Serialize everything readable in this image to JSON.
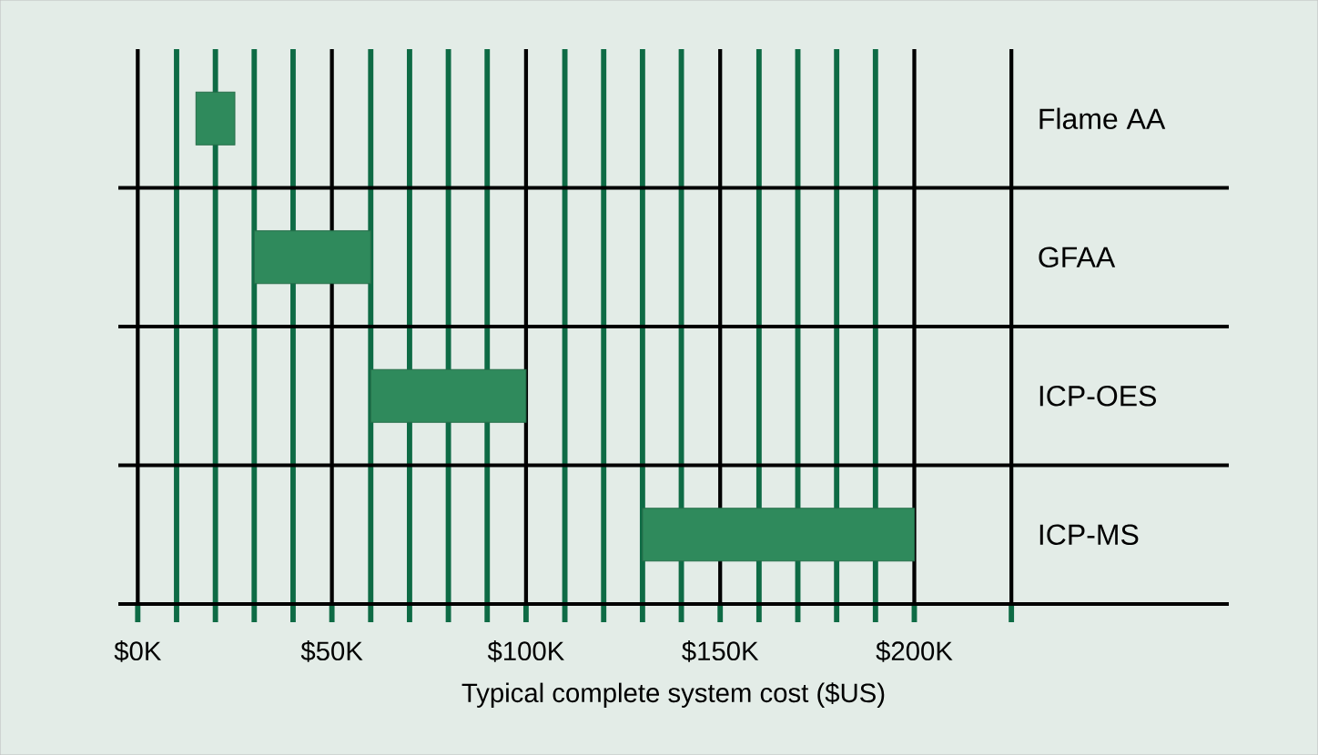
{
  "chart_data": {
    "type": "bar",
    "orientation": "horizontal",
    "xlabel": "Typical complete system cost ($US)",
    "categories": [
      "Flame AA",
      "GFAA",
      "ICP-OES",
      "ICP-MS"
    ],
    "base": [
      15,
      30,
      60,
      130
    ],
    "values": [
      10,
      30,
      40,
      70
    ],
    "color": "#2f8a5c",
    "xlim": [
      -5,
      281
    ],
    "xticks": [
      {
        "value": 0,
        "label": "$0K"
      },
      {
        "value": 10,
        "label": null
      },
      {
        "value": 20,
        "label": null
      },
      {
        "value": 30,
        "label": null
      },
      {
        "value": 40,
        "label": null
      },
      {
        "value": 50,
        "label": "$50K"
      },
      {
        "value": 60,
        "label": null
      },
      {
        "value": 70,
        "label": null
      },
      {
        "value": 80,
        "label": null
      },
      {
        "value": 90,
        "label": null
      },
      {
        "value": 100,
        "label": "$100K"
      },
      {
        "value": 110,
        "label": null
      },
      {
        "value": 120,
        "label": null
      },
      {
        "value": 130,
        "label": null
      },
      {
        "value": 140,
        "label": null
      },
      {
        "value": 150,
        "label": "$150K"
      },
      {
        "value": 160,
        "label": null
      },
      {
        "value": 170,
        "label": null
      },
      {
        "value": 180,
        "label": null
      },
      {
        "value": 190,
        "label": null
      },
      {
        "value": 200,
        "label": "$200K"
      },
      {
        "value": 225,
        "label": null
      }
    ],
    "grid": "x"
  }
}
